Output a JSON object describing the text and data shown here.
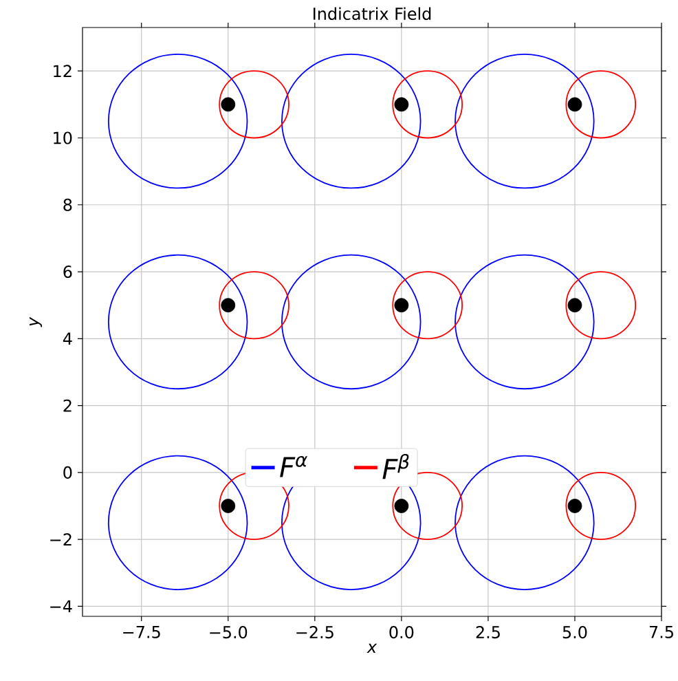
{
  "chart_data": {
    "type": "scatter",
    "title": "Indicatrix Field",
    "xlabel": "x",
    "ylabel": "y",
    "xlim": [
      -9.2,
      7.5
    ],
    "ylim": [
      -4.3,
      13.3
    ],
    "xticks": [
      {
        "value": -7.5,
        "label": "−7.5"
      },
      {
        "value": -5,
        "label": "−5.0"
      },
      {
        "value": -2.5,
        "label": "−2.5"
      },
      {
        "value": 0,
        "label": "0.0"
      },
      {
        "value": 2.5,
        "label": "2.5"
      },
      {
        "value": 5,
        "label": "5.0"
      },
      {
        "value": 7.5,
        "label": "7.5"
      }
    ],
    "yticks": [
      {
        "value": -4,
        "label": "−4"
      },
      {
        "value": -2,
        "label": "−2"
      },
      0,
      2,
      4,
      6,
      8,
      10,
      12
    ],
    "grid": true,
    "marker": "circle",
    "annotations": [
      "F$^{α}$",
      "F$^{β}$"
    ],
    "series": [
      {
        "color": "#000000",
        "x": [
          -5,
          0,
          5,
          -5,
          0,
          5,
          -5,
          0,
          5
        ],
        "values": [
          11,
          11,
          11,
          5,
          5,
          5,
          -1,
          -1,
          -1
        ]
      }
    ]
  }
}
